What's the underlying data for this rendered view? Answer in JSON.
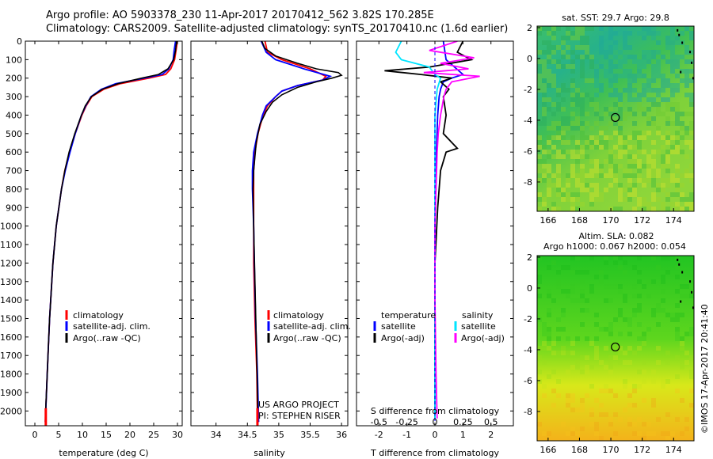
{
  "header": {
    "title_line1": "Argo profile: AO 5903378_230 11-Apr-2017 20170412_562 3.82S 170.285E",
    "title_line2": "Climatology: CARS2009. Satellite-adjusted climatology: synTS_20170410.nc (1.6d earlier)"
  },
  "depth_axis": {
    "ticks": [
      0,
      100,
      200,
      300,
      400,
      500,
      600,
      700,
      800,
      900,
      1000,
      1100,
      1200,
      1300,
      1400,
      1500,
      1600,
      1700,
      1800,
      1900,
      2000
    ],
    "range": [
      0,
      2080
    ]
  },
  "colors": {
    "climatology": "#ff0000",
    "satellite": "#0000ff",
    "argo": "#000000",
    "sat_salinity": "#00e5ff",
    "argo_adj_salinity": "#ff00ff"
  },
  "chart_data": [
    {
      "type": "line",
      "id": "temperature",
      "xlabel": "temperature (deg C)",
      "xlim": [
        -2,
        31
      ],
      "xticks": [
        0,
        5,
        10,
        15,
        20,
        25,
        30
      ],
      "legend": [
        "climatology",
        "satellite-adj. clim.",
        "Argo(..raw -QC)"
      ],
      "series": [
        {
          "name": "climatology",
          "depth": [
            0,
            50,
            100,
            150,
            180,
            200,
            230,
            260,
            300,
            350,
            400,
            500,
            600,
            700,
            800,
            1000,
            1200,
            1500,
            1800,
            2060
          ],
          "values": [
            30.0,
            29.7,
            29.4,
            28.6,
            27.5,
            24.0,
            18.0,
            14.5,
            12.0,
            10.8,
            9.9,
            8.5,
            7.3,
            6.3,
            5.6,
            4.5,
            3.8,
            3.1,
            2.6,
            2.2
          ]
        },
        {
          "name": "satellite-adj. clim.",
          "depth": [
            0,
            50,
            100,
            150,
            180,
            200,
            230,
            260,
            300,
            350,
            400,
            500,
            600,
            700,
            800,
            1000,
            1200,
            1500,
            1800,
            2060
          ],
          "values": [
            29.6,
            29.3,
            29.1,
            28.2,
            26.8,
            23.0,
            17.0,
            14.0,
            11.8,
            10.7,
            9.8,
            8.5,
            7.4,
            6.4,
            5.6,
            4.5,
            3.8,
            3.1,
            2.6,
            2.2
          ]
        },
        {
          "name": "Argo(..raw -QC)",
          "depth": [
            0,
            50,
            100,
            150,
            180,
            200,
            230,
            260,
            300,
            350,
            400,
            500,
            600,
            700,
            800,
            1000,
            1200,
            1500,
            1800,
            2040
          ],
          "values": [
            29.8,
            29.6,
            29.2,
            28.0,
            26.0,
            22.5,
            17.5,
            14.2,
            11.9,
            10.6,
            9.8,
            8.4,
            7.2,
            6.3,
            5.6,
            4.5,
            3.8,
            3.1,
            2.6,
            2.2
          ]
        }
      ]
    },
    {
      "type": "line",
      "id": "salinity",
      "xlabel": "salinity",
      "xlim": [
        33.6,
        36.1
      ],
      "xticks": [
        34,
        34.5,
        35,
        35.5,
        36
      ],
      "legend": [
        "climatology",
        "satellite-adj. clim.",
        "Argo(..raw -QC)"
      ],
      "annotations": [
        "US ARGO PROJECT",
        "PI: STEPHEN RISER"
      ],
      "series": [
        {
          "name": "climatology",
          "depth": [
            0,
            60,
            100,
            150,
            190,
            210,
            240,
            270,
            300,
            350,
            400,
            500,
            600,
            700,
            800,
            1000,
            1200,
            1500,
            1800,
            2060
          ],
          "values": [
            34.78,
            34.82,
            35.05,
            35.5,
            35.75,
            35.7,
            35.3,
            35.05,
            34.95,
            34.82,
            34.75,
            34.67,
            34.62,
            34.6,
            34.6,
            34.6,
            34.6,
            34.62,
            34.65,
            34.66
          ]
        },
        {
          "name": "satellite-adj. clim.",
          "depth": [
            0,
            60,
            100,
            150,
            190,
            210,
            240,
            270,
            300,
            350,
            400,
            500,
            600,
            700,
            800,
            1000,
            1200,
            1500,
            1800,
            2060
          ],
          "values": [
            34.72,
            34.8,
            34.95,
            35.4,
            35.82,
            35.7,
            35.3,
            35.05,
            34.95,
            34.8,
            34.74,
            34.66,
            34.6,
            34.58,
            34.58,
            34.6,
            34.61,
            34.63,
            34.66,
            34.68
          ]
        },
        {
          "name": "Argo(..raw -QC)",
          "depth": [
            0,
            40,
            80,
            120,
            150,
            170,
            185,
            200,
            220,
            250,
            290,
            330,
            380,
            450,
            550,
            700,
            800,
            1000,
            1300,
            1600,
            1900,
            2040
          ],
          "values": [
            34.73,
            34.78,
            34.95,
            35.3,
            35.6,
            35.95,
            36.0,
            35.85,
            35.6,
            35.3,
            35.05,
            34.9,
            34.8,
            34.7,
            34.64,
            34.6,
            34.59,
            34.6,
            34.62,
            34.64,
            34.66,
            34.67
          ]
        }
      ]
    },
    {
      "type": "line",
      "id": "difference",
      "xlabel": "T difference from climatology",
      "xlabel_top": "S difference from climatology",
      "xlim": [
        -2.8,
        2.8
      ],
      "xticks": [
        -2,
        -1,
        0,
        1,
        2
      ],
      "xticks_s": [
        "-0.5",
        "-0.25",
        "0",
        "0.25",
        "0.5"
      ],
      "legend_title_t": "temperature",
      "legend_title_s": "salinity",
      "legend": [
        "satellite",
        "Argo(-adj)",
        "satellite",
        "Argo(-adj)"
      ],
      "series": [
        {
          "name": "T satellite",
          "depth": [
            0,
            100,
            180,
            200,
            220,
            260,
            300,
            400,
            600,
            1000,
            1400,
            2040
          ],
          "values": [
            0.3,
            0.4,
            1.0,
            0.6,
            0.3,
            0.2,
            0.15,
            0.1,
            0.05,
            0.0,
            0.0,
            0.0
          ]
        },
        {
          "name": "T Argo(-adj)",
          "depth": [
            0,
            60,
            100,
            140,
            160,
            180,
            200,
            220,
            260,
            300,
            400,
            500,
            580,
            600,
            700,
            900,
            1200,
            1600,
            2040
          ],
          "values": [
            1.0,
            0.8,
            1.3,
            -0.2,
            -1.8,
            -0.5,
            0.6,
            0.2,
            0.5,
            0.3,
            0.4,
            0.3,
            0.8,
            0.4,
            0.2,
            0.1,
            0.0,
            0.0,
            0.0
          ]
        },
        {
          "name": "S satellite",
          "depth": [
            0,
            60,
            100,
            140,
            180,
            200,
            260,
            400,
            800,
            1400,
            2040
          ],
          "values": [
            -0.3,
            -0.35,
            -0.3,
            -0.05,
            0.0,
            0.05,
            0.02,
            0.0,
            0.0,
            0.0,
            0.0
          ]
        },
        {
          "name": "S Argo(-adj)",
          "depth": [
            0,
            50,
            90,
            120,
            150,
            170,
            190,
            220,
            260,
            300,
            400,
            500,
            600,
            800,
            1000,
            1400,
            1800,
            2040
          ],
          "values": [
            0.2,
            -0.05,
            0.35,
            0.05,
            0.3,
            -0.1,
            0.4,
            0.15,
            0.1,
            0.08,
            0.05,
            0.03,
            0.02,
            0.01,
            0.0,
            0.0,
            0.01,
            0.02
          ]
        }
      ]
    },
    {
      "type": "heatmap",
      "id": "sst_map",
      "title": "sat. SST: 29.7 Argo: 29.8",
      "xlim": [
        165.3,
        175.3
      ],
      "ylim": [
        -9.9,
        2.1
      ],
      "xticks": [
        166,
        168,
        170,
        172,
        174
      ],
      "yticks": [
        2,
        0,
        -2,
        -4,
        -6,
        -8
      ],
      "profile_location": [
        170.285,
        -3.82
      ]
    },
    {
      "type": "heatmap",
      "id": "sla_map",
      "title": "Altim. SLA: 0.082",
      "subtitle": "Argo h1000: 0.067 h2000: 0.054",
      "xlim": [
        165.3,
        175.3
      ],
      "ylim": [
        -9.9,
        2.1
      ],
      "xticks": [
        166,
        168,
        170,
        172,
        174
      ],
      "yticks": [
        2,
        0,
        -2,
        -4,
        -6,
        -8
      ],
      "profile_location": [
        170.285,
        -3.82
      ]
    }
  ],
  "footer": {
    "stamp": "©IMOS 17-Apr-2017 20:41:40"
  }
}
